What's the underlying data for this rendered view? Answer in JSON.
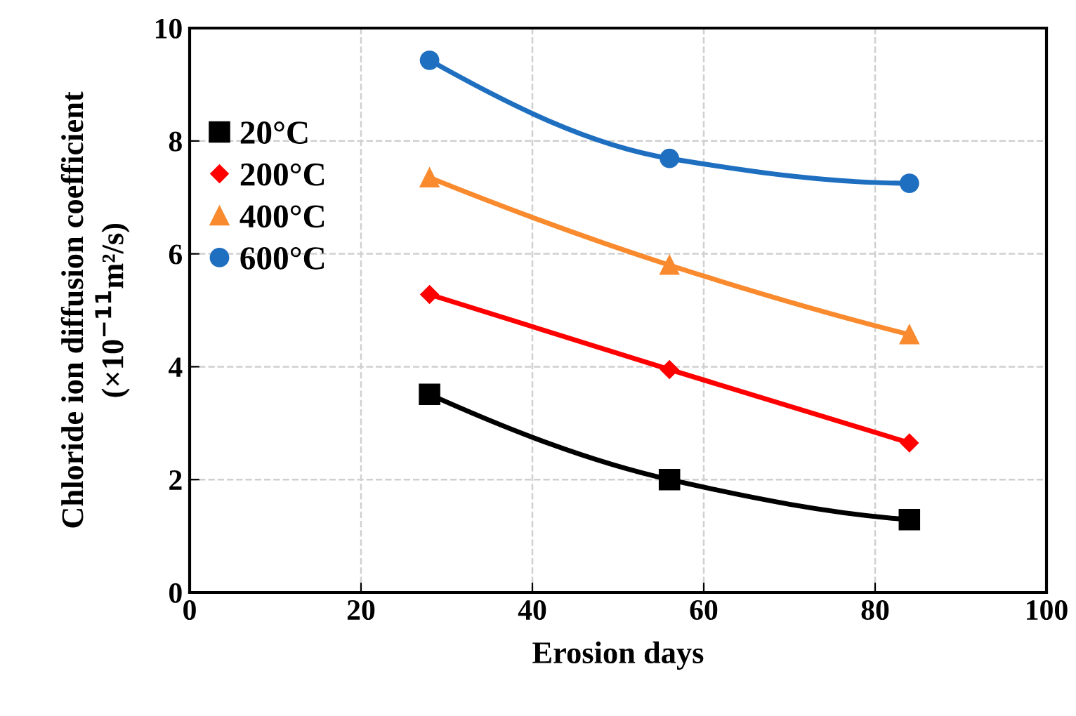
{
  "chart_data": {
    "type": "line",
    "xlabel": "Erosion days",
    "ylabel": "Chloride ion diffusion coefficient\n(×10$^{−11}$m²/s)",
    "x": [
      28,
      56,
      84
    ],
    "series": [
      {
        "name": "20°C",
        "color": "#000000",
        "marker": "square",
        "values": [
          3.51,
          2.0,
          1.29
        ]
      },
      {
        "name": "200°C",
        "color": "#ff0000",
        "marker": "diamond",
        "values": [
          5.28,
          3.95,
          2.65
        ]
      },
      {
        "name": "400°C",
        "color": "#f98a2e",
        "marker": "triangle",
        "values": [
          7.35,
          5.8,
          4.57
        ]
      },
      {
        "name": "600°C",
        "color": "#1f6fc1",
        "marker": "circle",
        "values": [
          9.43,
          7.69,
          7.25
        ]
      }
    ],
    "xlim": [
      0,
      100
    ],
    "xticks": [
      0,
      20,
      40,
      60,
      80,
      100
    ],
    "ylim": [
      0,
      10
    ],
    "yticks": [
      0,
      2,
      4,
      6,
      8,
      10
    ],
    "grid": true,
    "legend": "top left",
    "line_style": "solid"
  }
}
